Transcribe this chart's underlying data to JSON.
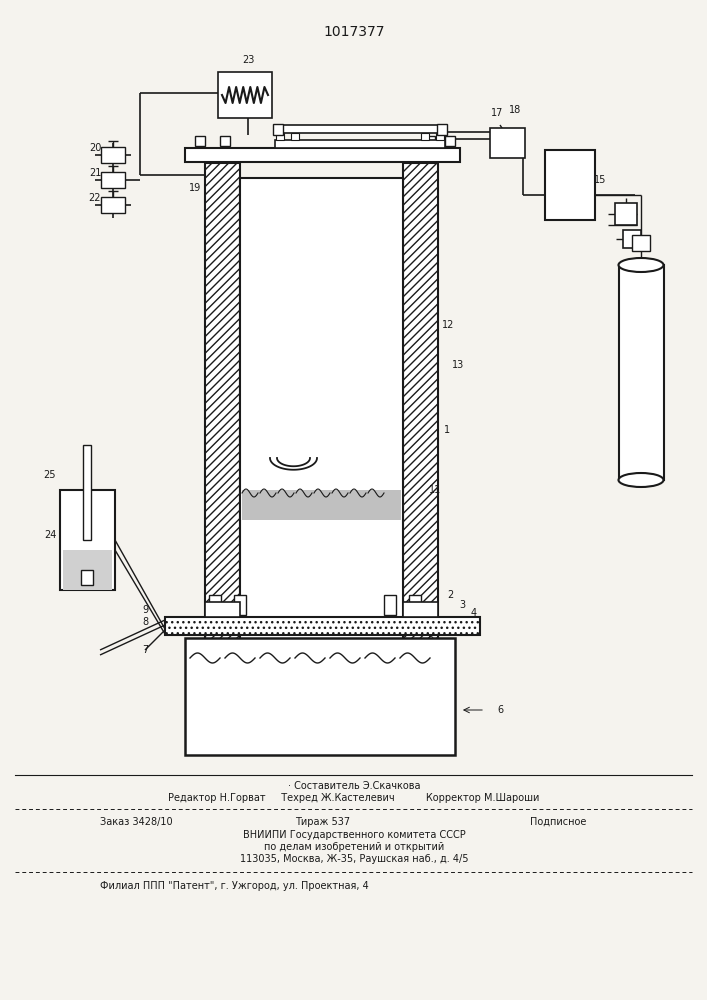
{
  "title": "1017377",
  "bg_color": "#f5f3ee",
  "line_color": "#1a1a1a",
  "footer_comp": "· Составитель Э.Скачкова",
  "footer_row1": "Редактор Н.Горват     Техред Ж.Кастелевич          Корректор М.Шароши",
  "footer_order": "Заказ 3428/10",
  "footer_tirazh": "Тираж 537",
  "footer_podp": "Подписное",
  "footer_vniip": "ВНИИПИ Государственного комитета СССР",
  "footer_po": "по делам изобретений и открытий",
  "footer_addr": "113035, Москва, Ж-35, Раушская наб., д. 4/5",
  "footer_filial": "Филиал ППП \"Патент\", г. Ужгород, ул. Проектная, 4"
}
